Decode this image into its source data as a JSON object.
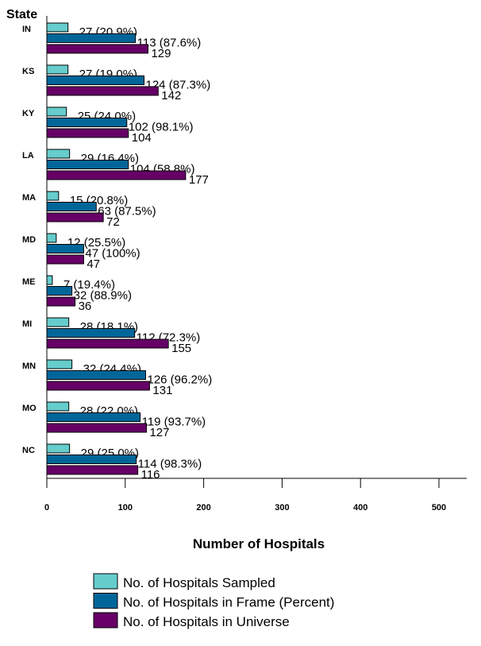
{
  "chart_data": {
    "type": "bar",
    "orientation": "horizontal",
    "y_title": "State",
    "xlabel": "Number of Hospitals",
    "xlim": [
      0,
      500
    ],
    "xticks": [
      0,
      100,
      200,
      300,
      400,
      500
    ],
    "grid": false,
    "legend_placement": "bottom",
    "categories": [
      "IN",
      "KS",
      "KY",
      "LA",
      "MA",
      "MD",
      "ME",
      "MI",
      "MN",
      "MO",
      "NC"
    ],
    "series": [
      {
        "name": "No. of Hospitals Sampled",
        "color": "#66CCCC",
        "values": [
          27,
          27,
          25,
          29,
          15,
          12,
          7,
          28,
          32,
          28,
          29
        ],
        "labels": [
          "27  (20.9%)",
          "27  (19.0%)",
          "25  (24.0%)",
          "29  (16.4%)",
          "15  (20.8%)",
          "12  (25.5%)",
          "7  (19.4%)",
          "28  (18.1%)",
          "32  (24.4%)",
          "28  (22.0%)",
          "29  (25.0%)"
        ]
      },
      {
        "name": "No. of Hospitals in Frame (Percent)",
        "color": "#006699",
        "values": [
          113,
          124,
          102,
          104,
          63,
          47,
          32,
          112,
          126,
          119,
          114
        ],
        "labels": [
          "113  (87.6%)",
          "124  (87.3%)",
          "102  (98.1%)",
          "104  (58.8%)",
          "63  (87.5%)",
          "47  (100%)",
          "32  (88.9%)",
          "112  (72.3%)",
          "126  (96.2%)",
          "119  (93.7%)",
          "114  (98.3%)"
        ]
      },
      {
        "name": "No. of Hospitals in Universe",
        "color": "#660066",
        "values": [
          129,
          142,
          104,
          177,
          72,
          47,
          36,
          155,
          131,
          127,
          116
        ],
        "labels": [
          "129",
          "142",
          "104",
          "177",
          "72",
          "47",
          "36",
          "155",
          "131",
          "127",
          "116"
        ]
      }
    ]
  }
}
